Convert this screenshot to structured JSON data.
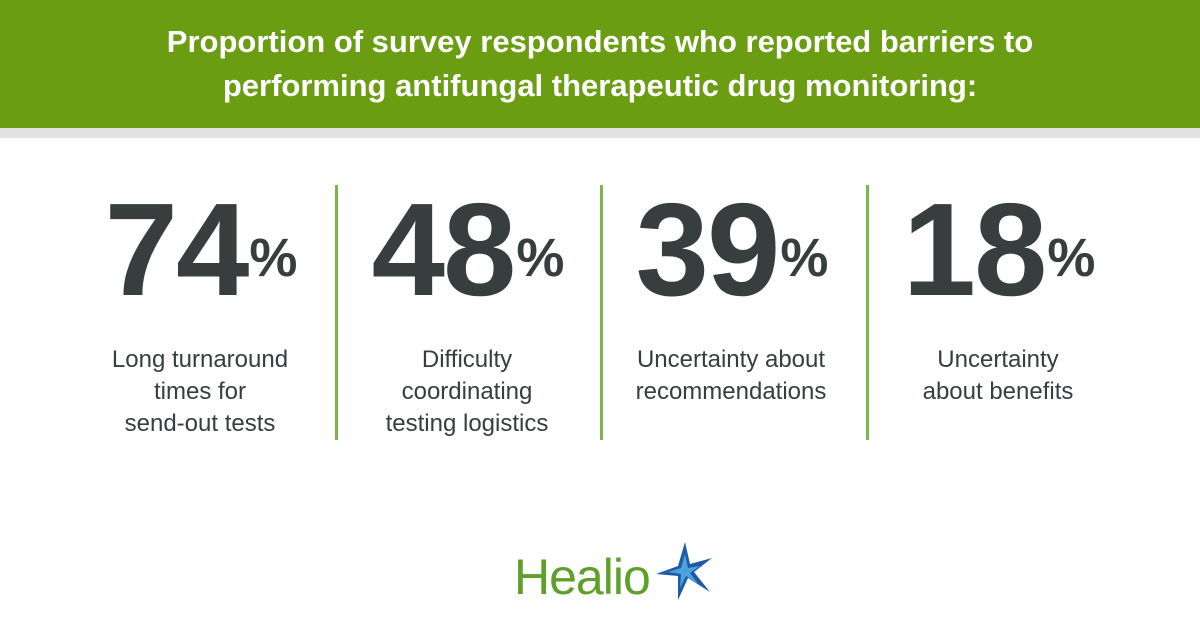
{
  "header": {
    "title_lines": [
      "Proportion of survey respondents who reported barriers to",
      "performing antifungal therapeutic drug monitoring:"
    ]
  },
  "stats": [
    {
      "value": 74,
      "unit": "%",
      "label_lines": [
        "Long turnaround",
        "times for",
        "send-out tests"
      ]
    },
    {
      "value": 48,
      "unit": "%",
      "label_lines": [
        "Difficulty",
        "coordinating",
        "testing logistics"
      ]
    },
    {
      "value": 39,
      "unit": "%",
      "label_lines": [
        "Uncertainty about",
        "recommendations"
      ]
    },
    {
      "value": 18,
      "unit": "%",
      "label_lines": [
        "Uncertainty",
        "about benefits"
      ]
    }
  ],
  "logo": "Healio"
}
